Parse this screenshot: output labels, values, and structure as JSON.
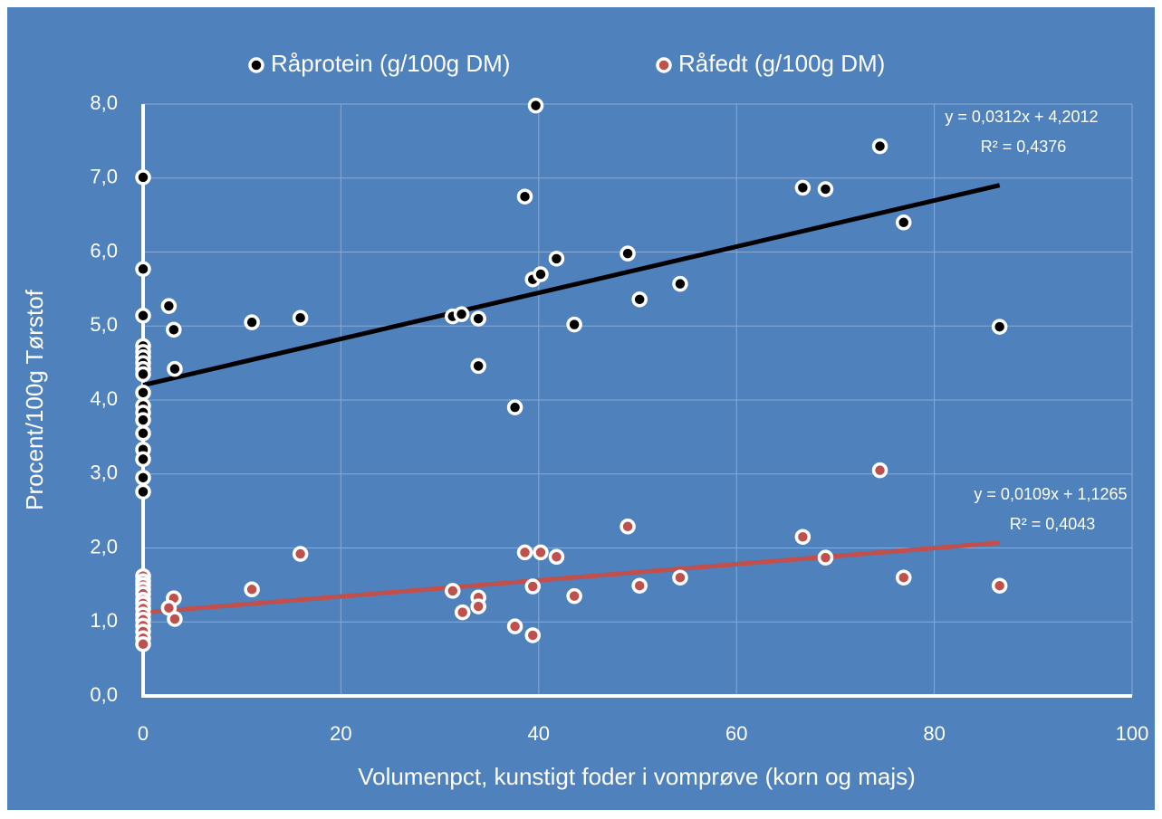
{
  "chart_data": {
    "type": "scatter",
    "xlabel": "Volumenpct, kunstigt foder  i vomprøve (korn og majs)",
    "ylabel": "Procent/100g Tørstof",
    "xlim": [
      0,
      100
    ],
    "ylim": [
      0,
      8
    ],
    "xticks": [
      0,
      20,
      40,
      60,
      80,
      100
    ],
    "yticks": [
      {
        "value": 0,
        "label": "0,0"
      },
      {
        "value": 1,
        "label": "1,0"
      },
      {
        "value": 2,
        "label": "2,0"
      },
      {
        "value": 3,
        "label": "3,0"
      },
      {
        "value": 4,
        "label": "4,0"
      },
      {
        "value": 5,
        "label": "5,0"
      },
      {
        "value": 6,
        "label": "6,0"
      },
      {
        "value": 7,
        "label": "7,0"
      },
      {
        "value": 8,
        "label": "8,0"
      }
    ],
    "grid": true,
    "legend": "top",
    "series": [
      {
        "name": "Råprotein (g/100g DM)",
        "color": "#000000",
        "x": [
          0,
          0,
          0,
          0,
          0,
          0,
          0,
          0,
          0,
          0,
          0,
          0,
          0,
          0,
          0,
          0,
          0,
          0,
          2.6,
          3.1,
          3.2,
          11,
          15.9,
          31.3,
          32.2,
          33.9,
          33.9,
          37.6,
          38.6,
          39.7,
          39.4,
          40.2,
          41.8,
          43.6,
          49,
          50.2,
          54.3,
          66.7,
          69,
          74.5,
          76.9,
          86.6
        ],
        "values": [
          7.01,
          5.77,
          5.14,
          4.73,
          4.65,
          4.58,
          4.5,
          4.42,
          4.35,
          4.1,
          3.92,
          3.83,
          3.73,
          3.55,
          3.33,
          3.2,
          2.95,
          2.76,
          5.27,
          4.95,
          4.42,
          5.05,
          5.11,
          5.13,
          5.16,
          5.1,
          4.46,
          3.9,
          6.75,
          7.98,
          5.63,
          5.7,
          5.91,
          5.02,
          5.98,
          5.36,
          5.57,
          6.87,
          6.85,
          7.43,
          6.4,
          4.99
        ],
        "trendline": {
          "slope": 0.0312,
          "intercept": 4.2012,
          "label": "y = 0,0312x + 4,2012",
          "r2_label": "R² = 0,4376"
        }
      },
      {
        "name": "Råfedt (g/100g DM)",
        "color": "#c0504d",
        "x": [
          0,
          0,
          0,
          0,
          0,
          0,
          0,
          0,
          0,
          0,
          0,
          0,
          0,
          0,
          3.1,
          3.2,
          2.6,
          11,
          15.9,
          31.3,
          32.3,
          33.9,
          33.9,
          37.6,
          38.6,
          39.4,
          39.4,
          40.2,
          41.8,
          43.6,
          49,
          50.2,
          54.3,
          66.7,
          69,
          74.5,
          76.9,
          86.6
        ],
        "values": [
          1.62,
          1.55,
          1.5,
          1.44,
          1.38,
          1.3,
          1.25,
          1.18,
          1.1,
          1.03,
          0.95,
          0.87,
          0.78,
          0.7,
          1.32,
          1.04,
          1.19,
          1.44,
          1.92,
          1.42,
          1.13,
          1.33,
          1.21,
          0.94,
          1.94,
          0.82,
          1.48,
          1.94,
          1.88,
          1.35,
          2.29,
          1.49,
          1.6,
          2.15,
          1.87,
          3.05,
          1.6,
          1.49
        ],
        "trendline": {
          "slope": 0.0109,
          "intercept": 1.1265,
          "label": "y = 0,0109x + 1,1265",
          "r2_label": "R² = 0,4043"
        }
      }
    ]
  }
}
